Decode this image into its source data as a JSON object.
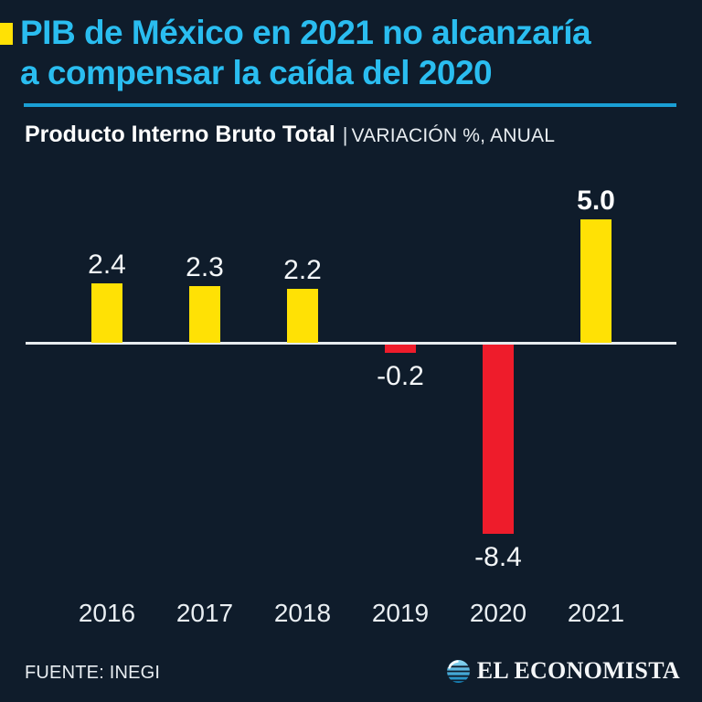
{
  "page": {
    "background": "#0f1c2b"
  },
  "header": {
    "accent_square_color": "#ffe105",
    "title_line1": "PIB de México en 2021 no alcanzaría",
    "title_line2": "a compensar la caída del 2020",
    "title_color": "#2abdf0",
    "rule_color": "#1a9fd5"
  },
  "subtitle": {
    "bold": "Producto Interno Bruto Total",
    "separator": "|",
    "rest": "VARIACIÓN %, ANUAL"
  },
  "chart_data": {
    "type": "bar",
    "title": "Producto Interno Bruto Total",
    "units_label": "VARIACIÓN %, ANUAL",
    "categories": [
      "2016",
      "2017",
      "2018",
      "2019",
      "2020",
      "2021"
    ],
    "values": [
      2.4,
      2.3,
      2.2,
      -0.2,
      -8.4,
      5.0
    ],
    "labels": [
      "2.4",
      "2.3",
      "2.2",
      "-0.2",
      "-8.4",
      "5.0"
    ],
    "emphasis_index": 5,
    "positive_color": "#ffe105",
    "negative_color": "#ee1c2b",
    "axis_color": "#e6ebee",
    "baseline": 0,
    "ylim": [
      -8.4,
      5.0
    ],
    "grid": false,
    "legend": "none"
  },
  "footer": {
    "source": "FUENTE: INEGI",
    "brand": "EL ECONOMISTA",
    "brand_icon": "globe-icon",
    "brand_icon_color": "#2abdf0"
  }
}
